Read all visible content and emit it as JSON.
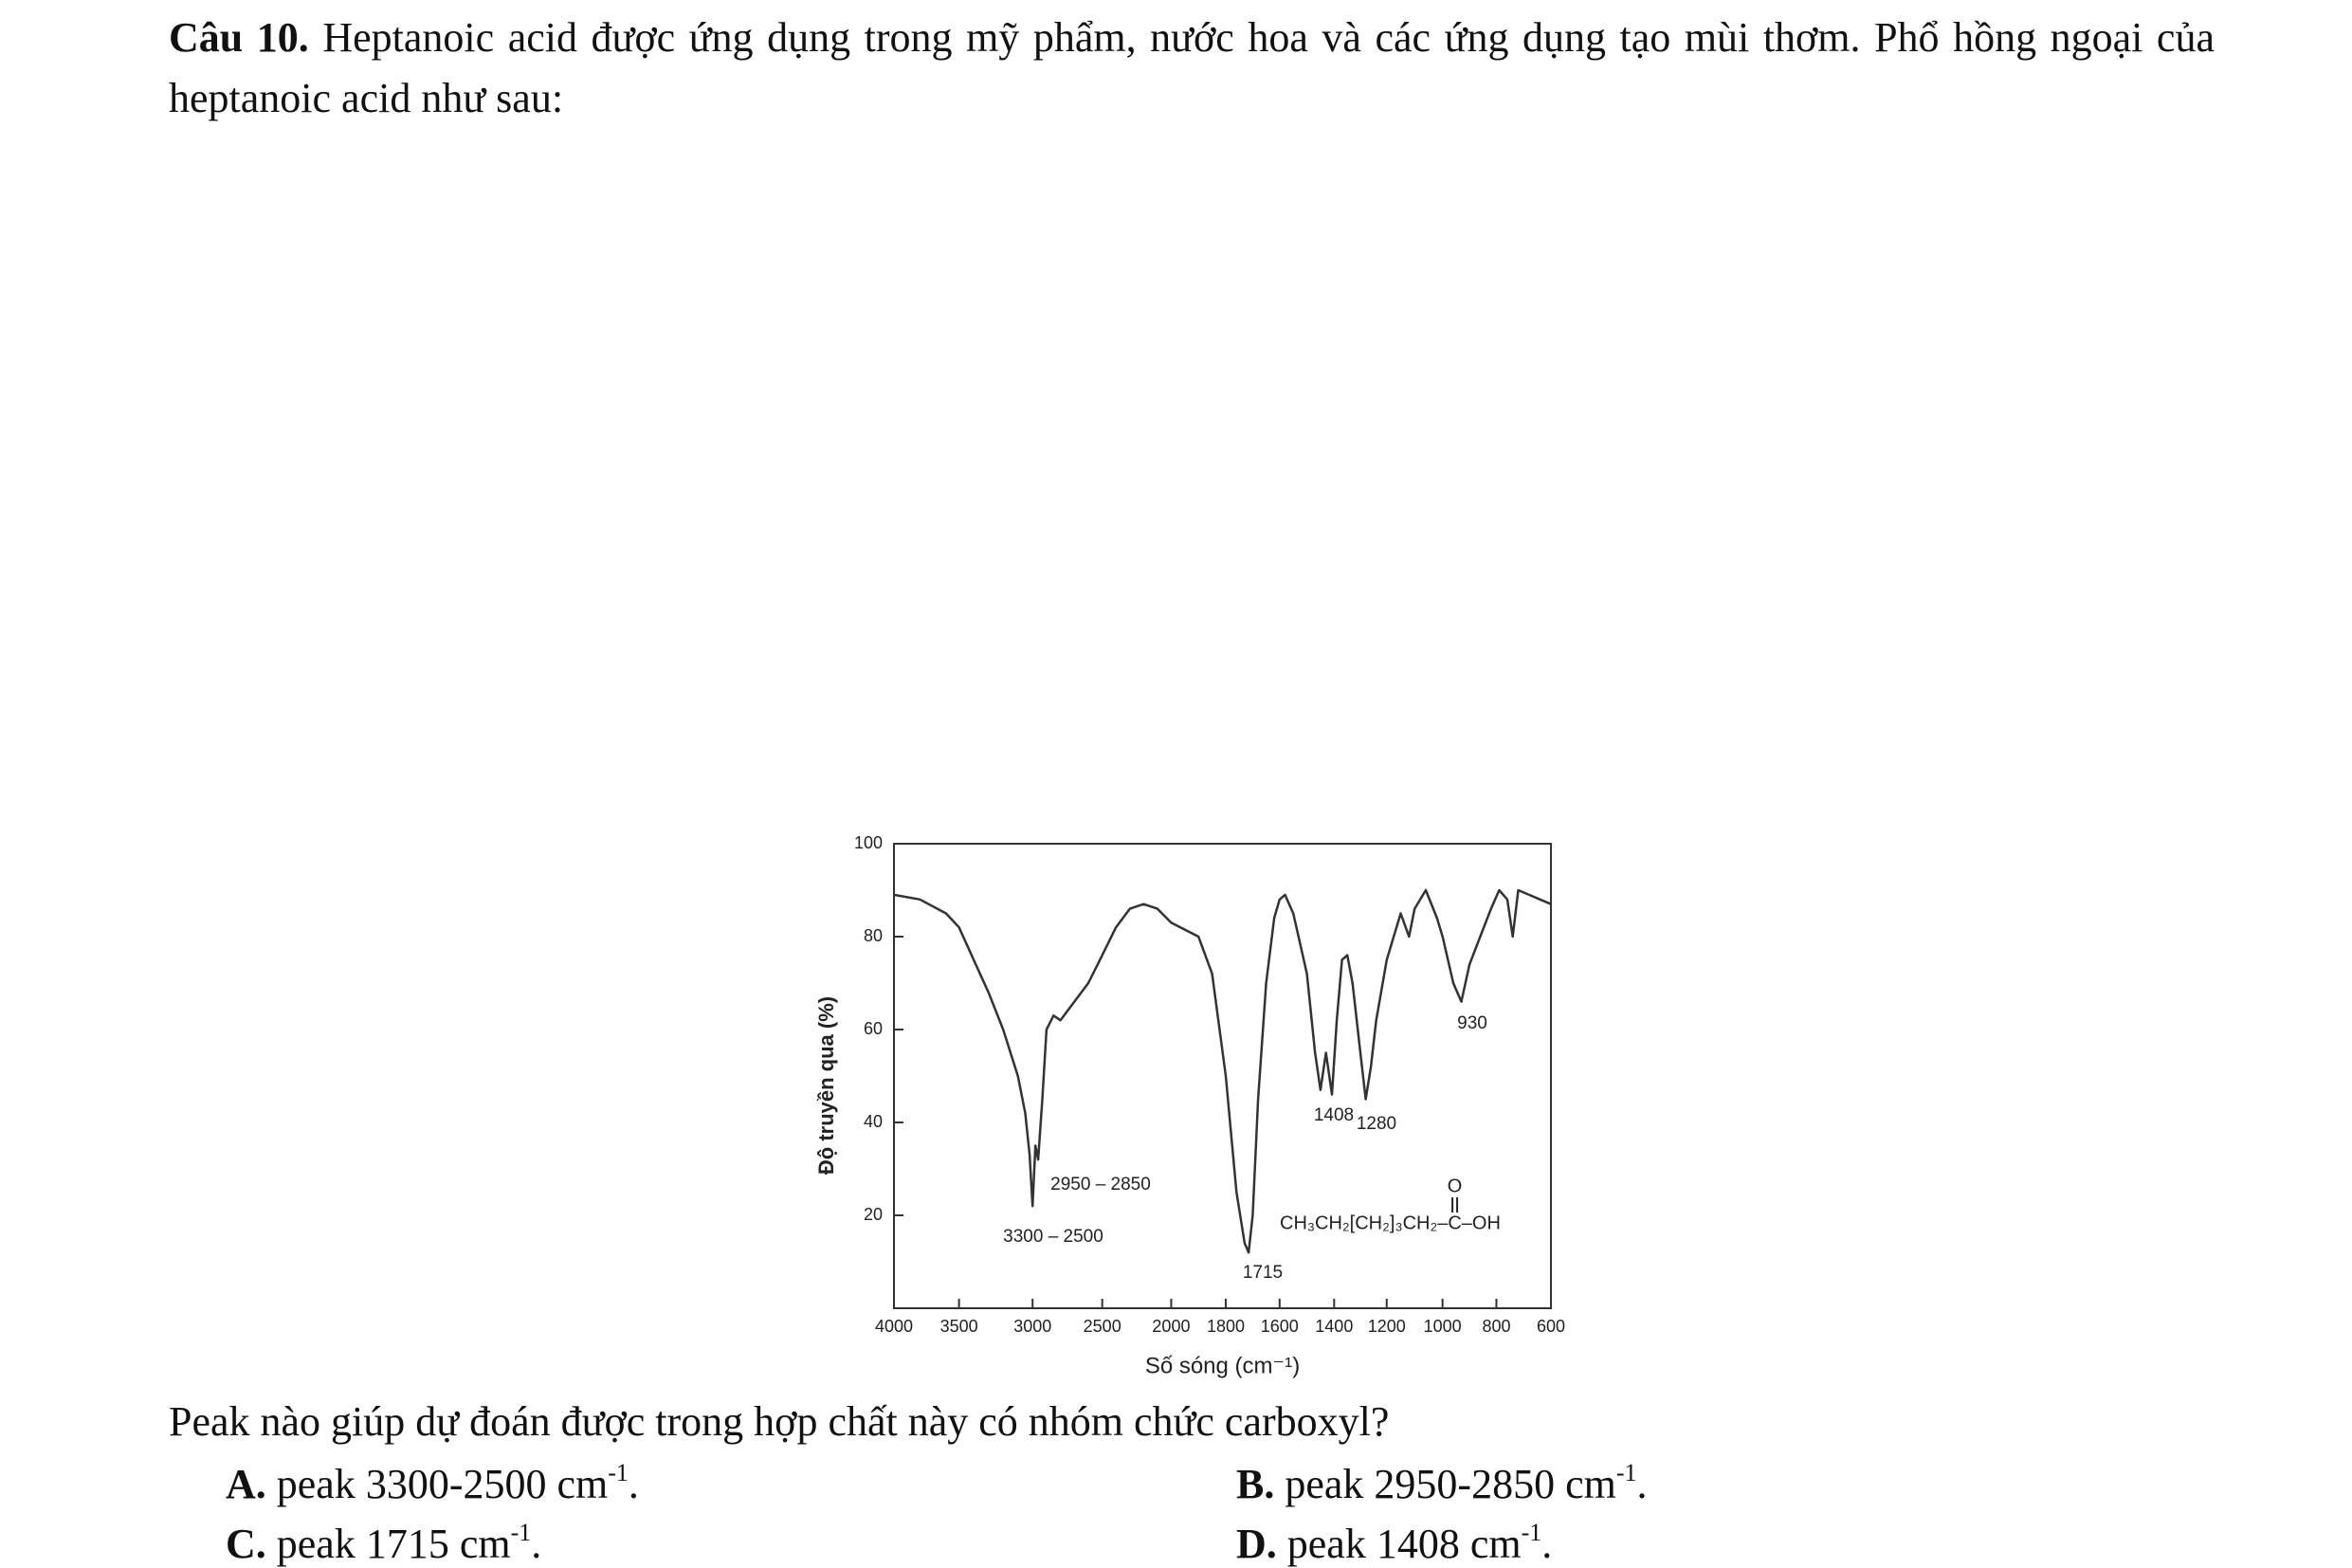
{
  "question": {
    "label": "Câu 10.",
    "text": " Heptanoic acid được ứng dụng trong mỹ phẩm, nước hoa và các ứng dụng tạo mùi thơm. Phổ hồng ngoại của heptanoic acid như sau:"
  },
  "chart_data": {
    "type": "line",
    "ylabel": "Độ truyền qua (%)",
    "xlabel": "Số sóng (cm⁻¹)",
    "xlim": [
      4000,
      600
    ],
    "xticks": [
      4000,
      3500,
      3000,
      2500,
      2000,
      1800,
      1600,
      1400,
      1200,
      1000,
      800,
      600
    ],
    "ylim": [
      0,
      100
    ],
    "yticks": [
      20,
      40,
      60,
      80,
      100
    ],
    "color": "#333333",
    "x": [
      4000,
      3800,
      3600,
      3500,
      3400,
      3300,
      3200,
      3100,
      3050,
      3020,
      3000,
      2980,
      2960,
      2930,
      2900,
      2850,
      2800,
      2700,
      2600,
      2500,
      2400,
      2300,
      2200,
      2100,
      2000,
      1900,
      1850,
      1800,
      1760,
      1730,
      1715,
      1700,
      1680,
      1650,
      1620,
      1600,
      1580,
      1550,
      1500,
      1470,
      1450,
      1430,
      1408,
      1390,
      1370,
      1350,
      1330,
      1300,
      1280,
      1260,
      1240,
      1200,
      1150,
      1120,
      1100,
      1060,
      1020,
      1000,
      960,
      930,
      900,
      860,
      820,
      790,
      760,
      740,
      720,
      680,
      600
    ],
    "values": [
      89,
      88,
      85,
      82,
      75,
      68,
      60,
      50,
      42,
      33,
      22,
      35,
      32,
      45,
      60,
      63,
      62,
      66,
      70,
      76,
      82,
      86,
      87,
      86,
      83,
      80,
      72,
      50,
      25,
      14,
      12,
      20,
      45,
      70,
      84,
      88,
      89,
      85,
      72,
      55,
      47,
      55,
      46,
      62,
      75,
      76,
      70,
      55,
      45,
      52,
      62,
      75,
      85,
      80,
      86,
      90,
      84,
      80,
      70,
      66,
      74,
      80,
      86,
      90,
      88,
      80,
      90,
      89,
      87
    ],
    "annotations": [
      "2950 – 2850",
      "3300 – 2500",
      "1715",
      "1408",
      "1280",
      "930"
    ],
    "formula": "CH₃CH₂[CH₂]₃CH₂–C–OH",
    "formula_top": "O"
  },
  "prompt": "Peak nào giúp dự đoán được trong hợp chất này có nhóm chức carboxyl?",
  "options": [
    {
      "letter": "A.",
      "text": " peak 3300-2500 cm",
      "sup": "-1",
      "end": "."
    },
    {
      "letter": "B.",
      "text": " peak 2950-2850 cm",
      "sup": "-1",
      "end": "."
    },
    {
      "letter": "C.",
      "text": " peak 1715 cm",
      "sup": "-1",
      "end": "."
    },
    {
      "letter": "D.",
      "text": " peak 1408 cm",
      "sup": "-1",
      "end": "."
    }
  ]
}
